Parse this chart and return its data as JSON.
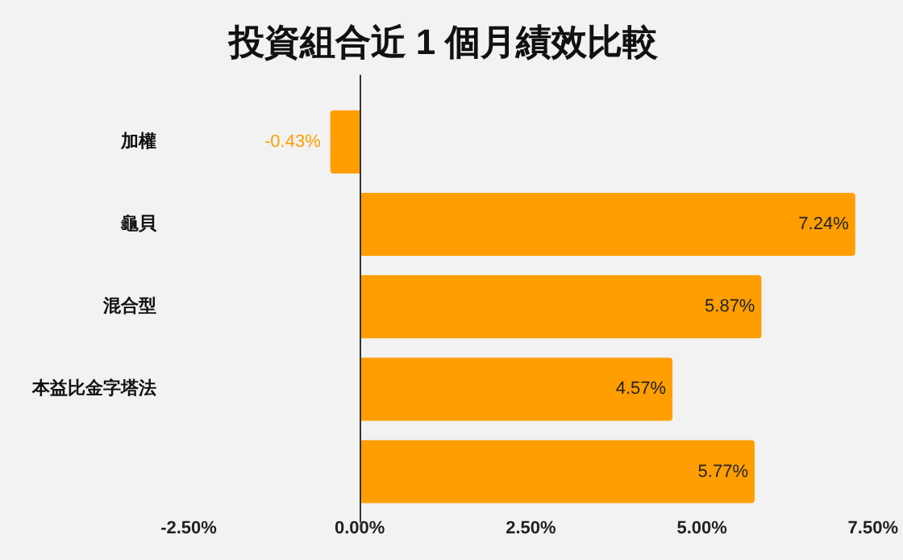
{
  "chart_data": {
    "type": "bar",
    "orientation": "horizontal",
    "title": "投資組合近 1 個月績效比較",
    "categories": [
      "加權",
      "龜貝",
      "混合型",
      "本益比金字塔法",
      null
    ],
    "values": [
      -0.43,
      7.24,
      5.87,
      4.57,
      5.77
    ],
    "value_labels": [
      "-0.43%",
      "7.24%",
      "5.87%",
      "4.57%",
      "5.77%"
    ],
    "color": "#ff9e00",
    "xlim": [
      -2.5,
      7.5
    ],
    "xticks": [
      {
        "value": -2.5,
        "label": "-2.50%"
      },
      {
        "value": 0,
        "label": "0.00%"
      },
      {
        "value": 2.5,
        "label": "2.50%"
      },
      {
        "value": 5,
        "label": "5.00%"
      },
      {
        "value": 7.5,
        "label": "7.50%"
      }
    ],
    "legend": false
  }
}
